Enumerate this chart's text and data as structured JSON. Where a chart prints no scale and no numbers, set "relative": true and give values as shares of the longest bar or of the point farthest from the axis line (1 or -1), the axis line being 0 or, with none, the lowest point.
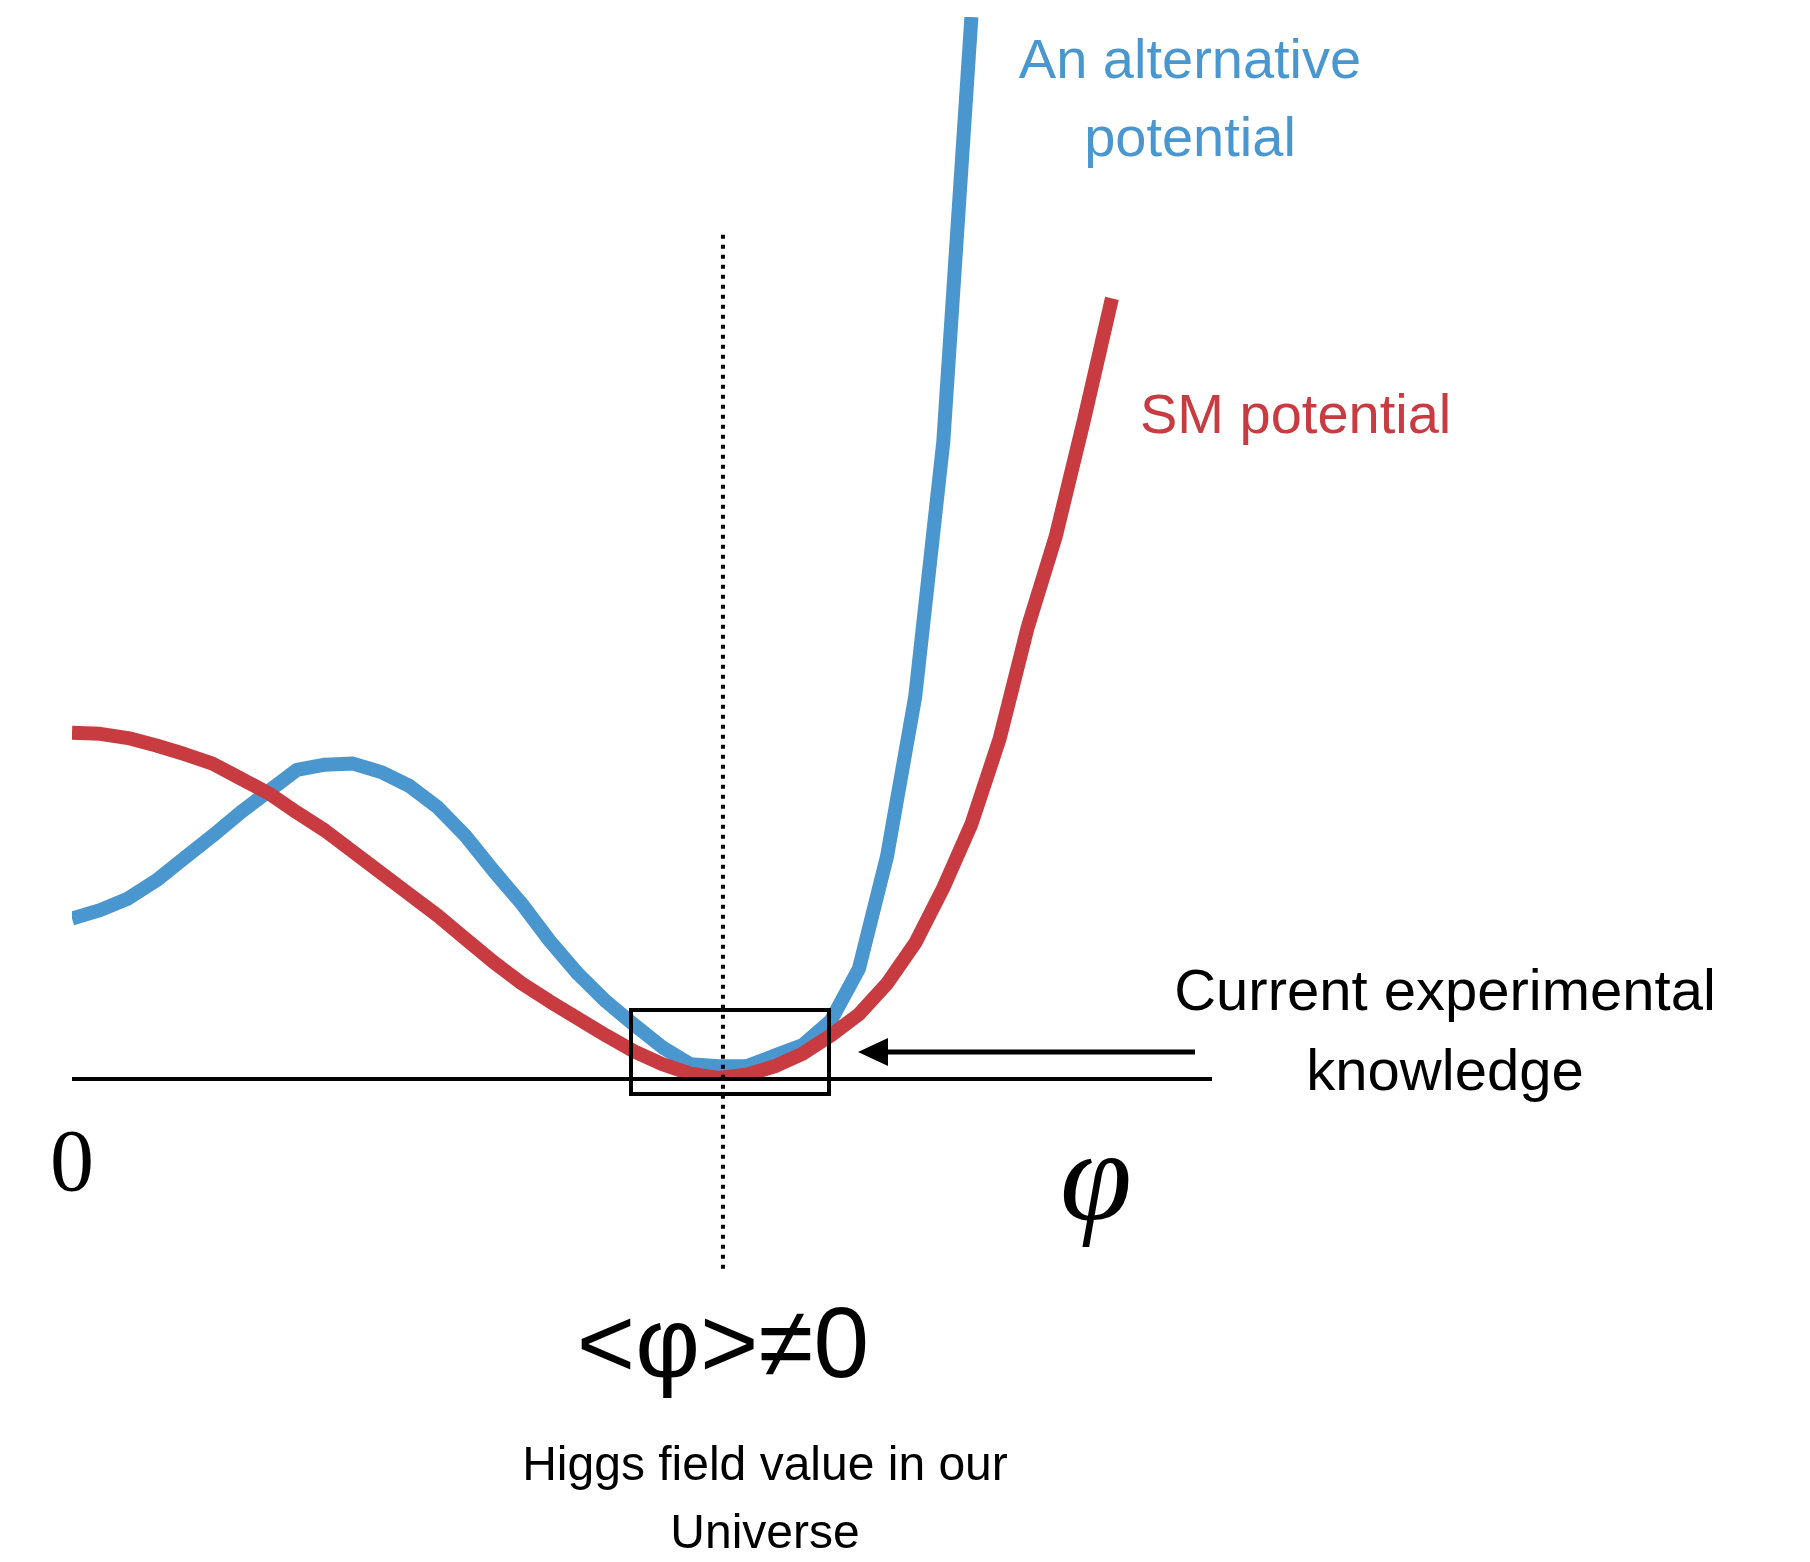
{
  "chart_data": {
    "type": "line",
    "relative": true,
    "xlabel": "φ",
    "categories": [
      null,
      null,
      null,
      null,
      null,
      null,
      null,
      null,
      null,
      null,
      null,
      null,
      null,
      null,
      null,
      null,
      null,
      null,
      null,
      null,
      null,
      null,
      null,
      null,
      null,
      null,
      null,
      null,
      null,
      null,
      null,
      null,
      null,
      null,
      null,
      null,
      null,
      null,
      null,
      null
    ],
    "grid": false,
    "legend": false,
    "marker": "none",
    "line_style": "solid",
    "series": [
      {
        "name": "An alternative potential",
        "color": "#4a96cf",
        "values": [
          0.151,
          0.159,
          0.17,
          0.187,
          0.208,
          0.229,
          0.251,
          0.271,
          0.291,
          0.296,
          0.297,
          0.289,
          0.276,
          0.256,
          0.229,
          0.196,
          0.165,
          0.13,
          0.099,
          0.073,
          0.051,
          0.03,
          0.014,
          0.012,
          0.012,
          0.022,
          0.032,
          0.055,
          0.104,
          0.21,
          0.36,
          0.6,
          1,
          null,
          null,
          null,
          null,
          null,
          null,
          null
        ]
      },
      {
        "name": "SM potential",
        "color": "#c83c41",
        "values": [
          0.326,
          0.325,
          0.321,
          0.314,
          0.306,
          0.297,
          0.283,
          0.269,
          0.251,
          0.234,
          0.214,
          0.194,
          0.174,
          0.154,
          0.132,
          0.11,
          0.09,
          0.073,
          0.057,
          0.041,
          0.026,
          0.014,
          0.005,
          0.001,
          0.004,
          0.012,
          0.024,
          0.041,
          0.061,
          0.09,
          0.128,
          0.18,
          0.24,
          0.32,
          0.425,
          0.511,
          0.62,
          0.735,
          null,
          null
        ]
      }
    ],
    "annotations": [
      "<φ>≠0",
      "Higgs field value in our Universe",
      "Current experimental knowledge",
      "0"
    ]
  }
}
